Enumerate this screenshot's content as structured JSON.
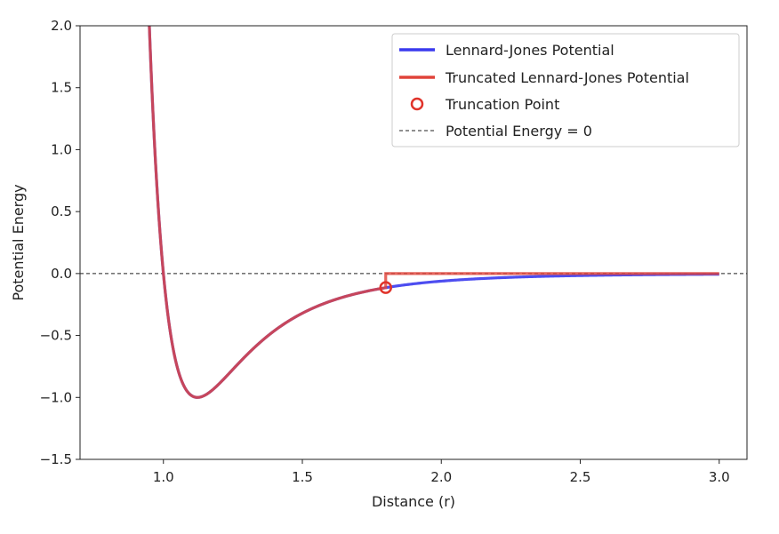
{
  "chart_data": {
    "type": "line",
    "title": "",
    "xlabel": "Distance (r)",
    "ylabel": "Potential Energy",
    "xlim": [
      0.7,
      3.1
    ],
    "ylim": [
      -1.5,
      2.0
    ],
    "xticks": [
      1.0,
      1.5,
      2.0,
      2.5,
      3.0
    ],
    "xtick_labels": [
      "1.0",
      "1.5",
      "2.0",
      "2.5",
      "3.0"
    ],
    "yticks": [
      -1.5,
      -1.0,
      -0.5,
      0.0,
      0.5,
      1.0,
      1.5,
      2.0
    ],
    "ytick_labels": [
      "−1.5",
      "−1.0",
      "−0.5",
      "0.0",
      "0.5",
      "1.0",
      "1.5",
      "2.0"
    ],
    "grid": false,
    "legend_position": "top-right",
    "series": [
      {
        "name": "Lennard-Jones Potential",
        "kind": "line",
        "color": "#3a3aee",
        "x_range": [
          0.9,
          3.0
        ],
        "formula": "4*(r^-12 - r^-6)"
      },
      {
        "name": "Truncated Lennard-Jones Potential",
        "kind": "line",
        "color": "#e0443a",
        "x_range": [
          0.9,
          3.0
        ],
        "cutoff": 1.8,
        "formula": "4*(r^-12 - r^-6) for r<1.8, else 0"
      },
      {
        "name": "Truncation Point",
        "kind": "marker",
        "color": "#e0332a",
        "x": 1.8,
        "y": -0.113
      },
      {
        "name": "Potential Energy = 0",
        "kind": "hline",
        "color": "#222222",
        "y": 0
      }
    ]
  }
}
